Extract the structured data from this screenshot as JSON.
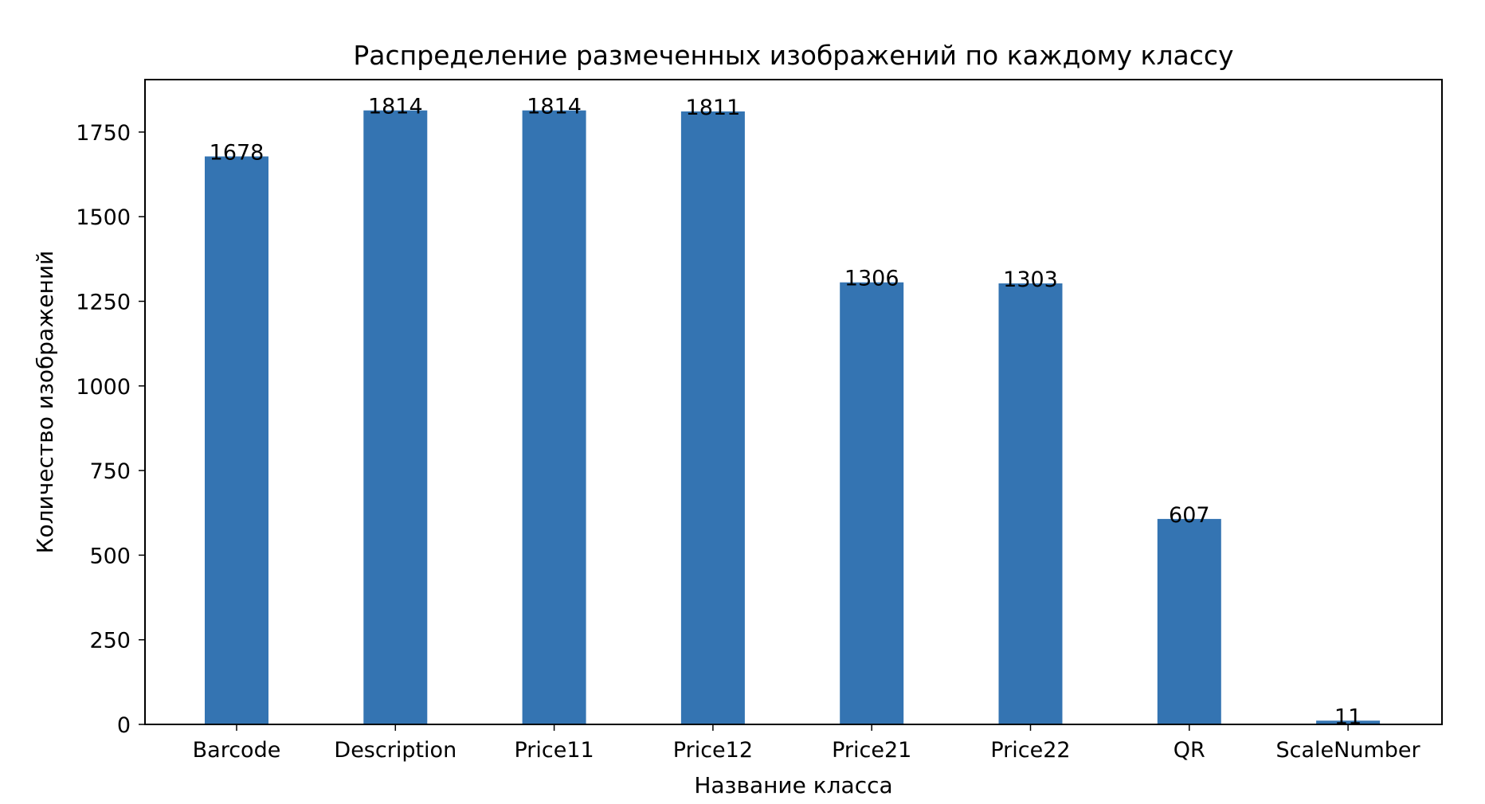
{
  "chart_data": {
    "type": "bar",
    "title": "Распределение размеченных изображений по каждому классу",
    "xlabel": "Название класса",
    "ylabel": "Количество изображений",
    "categories": [
      "Barcode",
      "Description",
      "Price11",
      "Price12",
      "Price21",
      "Price22",
      "QR",
      "ScaleNumber"
    ],
    "values": [
      1678,
      1814,
      1814,
      1811,
      1306,
      1303,
      607,
      11
    ],
    "data_labels": [
      "1678",
      "1814",
      "1814",
      "1811",
      "1306",
      "1303",
      "607",
      "11"
    ],
    "ylim": [
      0,
      1905
    ],
    "yticks": [
      0,
      250,
      500,
      750,
      1000,
      1250,
      1500,
      1750
    ],
    "ytick_labels": [
      "0",
      "250",
      "500",
      "750",
      "1000",
      "1250",
      "1500",
      "1750"
    ],
    "grid": false,
    "legend": "none",
    "colors": {
      "bar": "#3474b2",
      "axes": "#000000",
      "background": "#ffffff"
    }
  }
}
